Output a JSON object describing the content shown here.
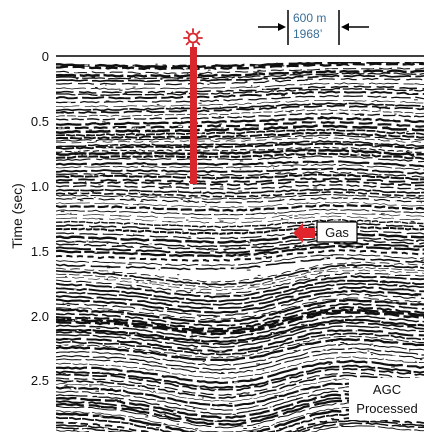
{
  "figure": {
    "y_axis": {
      "title": "Time (sec)",
      "ticks": [
        "0",
        "0.5",
        "1.0",
        "1.5",
        "2.0",
        "2.5"
      ]
    },
    "scale_bar": {
      "metric": "600 m",
      "imperial": "1968’"
    },
    "gas_label": "Gas",
    "processing_note": [
      "AGC",
      "Processed"
    ],
    "well_icon": "well-sun-icon",
    "colors": {
      "well": "#d8262b",
      "gas_arrow": "#e0262c",
      "scale_text": "#3a6e96"
    }
  }
}
